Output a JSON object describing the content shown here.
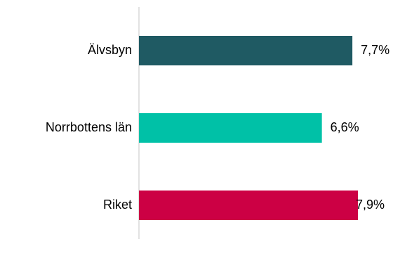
{
  "chart_data": {
    "type": "bar",
    "orientation": "horizontal",
    "categories": [
      "Älvsbyn",
      "Norrbottens län",
      "Riket"
    ],
    "values": [
      7.7,
      6.6,
      7.9
    ],
    "value_labels": [
      "7,7%",
      "6,6%",
      "7,9%"
    ],
    "colors": [
      "#1f5a63",
      "#00c1a7",
      "#cc0044"
    ],
    "xlim": [
      0,
      7.9
    ],
    "grid": false,
    "legend": "none",
    "title": "",
    "xlabel": "",
    "ylabel": ""
  }
}
